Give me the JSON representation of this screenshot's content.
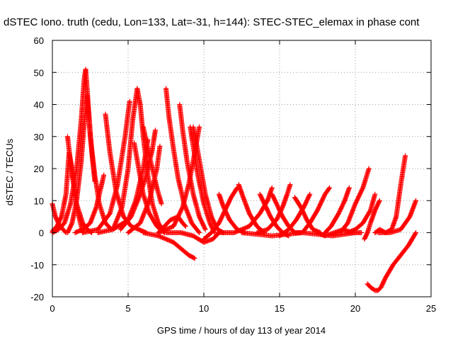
{
  "chart_data": {
    "type": "scatter",
    "title": "dSTEC Iono. truth (cedu, Lon=133, Lat=-31, h=144): STEC-STEC_elemax in phase cont",
    "xlabel": "GPS time / hours of day 113 of year 2014",
    "ylabel": "dSTEC  / TECUs",
    "xlim": [
      0,
      25
    ],
    "ylim": [
      -20,
      60
    ],
    "xticks": [
      "0",
      "5",
      "10",
      "15",
      "20",
      "25"
    ],
    "yticks": [
      "-20",
      "-10",
      "0",
      "10",
      "20",
      "30",
      "40",
      "50",
      "60"
    ],
    "grid": true,
    "marker": "plus",
    "color": "#ff0000",
    "series": [
      {
        "x": [
          0.0,
          0.3,
          0.6,
          0.9,
          1.1,
          1.3,
          1.6,
          2.0
        ],
        "y": [
          0.5,
          2,
          5,
          12,
          25,
          20,
          8,
          0
        ]
      },
      {
        "x": [
          0.0,
          0.2,
          0.4,
          0.7,
          0.9
        ],
        "y": [
          9,
          5,
          3,
          1,
          0
        ]
      },
      {
        "x": [
          0.0,
          0.4,
          0.8,
          1.2,
          1.6,
          1.9,
          2.1,
          2.2,
          2.4,
          2.6,
          2.8
        ],
        "y": [
          0,
          1,
          3,
          9,
          20,
          35,
          48,
          51,
          38,
          25,
          16
        ]
      },
      {
        "x": [
          1.0,
          1.1,
          1.3,
          1.6,
          2.0,
          2.3,
          2.6
        ],
        "y": [
          30,
          26,
          18,
          9,
          3,
          1,
          0
        ]
      },
      {
        "x": [
          1.0,
          1.3,
          1.6,
          1.9,
          2.1,
          2.3
        ],
        "y": [
          0,
          3,
          10,
          22,
          34,
          43
        ]
      },
      {
        "x": [
          2.3,
          2.5,
          2.8,
          3.1,
          3.5,
          3.9
        ],
        "y": [
          42,
          30,
          18,
          9,
          3,
          1
        ]
      },
      {
        "x": [
          1.5,
          2.0,
          2.5,
          2.9,
          3.2,
          3.4
        ],
        "y": [
          0,
          1,
          3,
          8,
          14,
          18
        ]
      },
      {
        "x": [
          2.0,
          3.0,
          3.8,
          4.3,
          4.8,
          5.1
        ],
        "y": [
          0,
          1,
          6,
          15,
          30,
          41
        ]
      },
      {
        "x": [
          3.5,
          3.8,
          4.2,
          4.7,
          5.2,
          5.7,
          6.2
        ],
        "y": [
          37,
          25,
          13,
          5,
          2,
          1,
          0
        ]
      },
      {
        "x": [
          3.0,
          4.0,
          5.0,
          5.5,
          6.0,
          6.3
        ],
        "y": [
          0,
          1,
          4,
          10,
          20,
          29
        ]
      },
      {
        "x": [
          4.0,
          4.6,
          5.0,
          5.3,
          5.6,
          5.8
        ],
        "y": [
          1,
          8,
          20,
          35,
          45,
          40
        ]
      },
      {
        "x": [
          5.8,
          6.0,
          6.3,
          6.6,
          7.0,
          7.4
        ],
        "y": [
          40,
          30,
          18,
          9,
          3,
          0
        ]
      },
      {
        "x": [
          5.4,
          5.7,
          6.0,
          6.4,
          6.9,
          7.4
        ],
        "y": [
          28,
          20,
          12,
          6,
          2,
          0
        ]
      },
      {
        "x": [
          6.0,
          6.3,
          6.6,
          6.9,
          7.2
        ],
        "y": [
          33,
          26,
          20,
          14,
          9
        ]
      },
      {
        "x": [
          4.5,
          5.2,
          5.8,
          6.2,
          6.6,
          6.8
        ],
        "y": [
          1,
          5,
          12,
          18,
          26,
          32
        ]
      },
      {
        "x": [
          5.0,
          5.8,
          6.4,
          6.9,
          7.1
        ],
        "y": [
          0,
          3,
          10,
          20,
          27
        ]
      },
      {
        "x": [
          6.0,
          7.0,
          8.0,
          8.5,
          9.0,
          9.4
        ],
        "y": [
          0,
          -1,
          -3,
          -5,
          -7,
          -8
        ]
      },
      {
        "x": [
          7.0,
          7.4,
          7.8,
          8.3,
          8.6,
          8.8
        ],
        "y": [
          0,
          2,
          4,
          5,
          3,
          2
        ]
      },
      {
        "x": [
          7.5,
          7.7,
          8.0,
          8.3,
          8.7,
          9.2,
          9.7
        ],
        "y": [
          45,
          36,
          26,
          17,
          9,
          3,
          0
        ]
      },
      {
        "x": [
          8.4,
          8.6,
          8.9,
          9.3,
          9.7,
          10.1
        ],
        "y": [
          40,
          32,
          22,
          12,
          5,
          1
        ]
      },
      {
        "x": [
          9.1,
          9.3,
          9.6,
          10.0,
          10.4,
          10.7
        ],
        "y": [
          33,
          27,
          18,
          9,
          3,
          0
        ]
      },
      {
        "x": [
          9.3,
          9.5,
          9.8,
          10.1,
          10.5,
          10.9,
          11.3
        ],
        "y": [
          33,
          28,
          20,
          12,
          5,
          1,
          0
        ]
      },
      {
        "x": [
          7.0,
          8.0,
          8.6,
          9.0,
          9.4,
          9.7
        ],
        "y": [
          0,
          2,
          8,
          15,
          25,
          33
        ]
      },
      {
        "x": [
          7.5,
          8.5,
          9.3,
          10.0,
          10.6,
          11.0
        ],
        "y": [
          0,
          0,
          -1,
          -3,
          -2,
          0
        ]
      },
      {
        "x": [
          11.0,
          11.3,
          11.7,
          12.2,
          12.7
        ],
        "y": [
          12,
          8,
          4,
          1,
          0
        ]
      },
      {
        "x": [
          10.0,
          10.5,
          11.0,
          11.5,
          11.8,
          12.2
        ],
        "y": [
          -2,
          0,
          3,
          8,
          11,
          14
        ]
      },
      {
        "x": [
          12.3,
          12.6,
          13.0,
          13.5,
          14.0
        ],
        "y": [
          15,
          11,
          6,
          2,
          0
        ]
      },
      {
        "x": [
          11.0,
          12.0,
          13.0,
          13.7,
          14.2,
          14.5
        ],
        "y": [
          0,
          0,
          2,
          6,
          10,
          14
        ]
      },
      {
        "x": [
          13.7,
          14.0,
          14.4,
          14.8,
          15.2,
          15.6
        ],
        "y": [
          12,
          9,
          5,
          2,
          0,
          -1
        ]
      },
      {
        "x": [
          13.5,
          14.2,
          14.8,
          15.2,
          15.5,
          15.7
        ],
        "y": [
          0,
          1,
          4,
          8,
          12,
          15
        ]
      },
      {
        "x": [
          14.5,
          14.8,
          15.2,
          15.6,
          16.0,
          16.4
        ],
        "y": [
          12,
          9,
          5,
          2,
          0,
          0
        ]
      },
      {
        "x": [
          15.0,
          15.6,
          16.1,
          16.6,
          17.0
        ],
        "y": [
          -1,
          1,
          4,
          8,
          12
        ]
      },
      {
        "x": [
          16.0,
          16.4,
          16.8,
          17.2,
          17.7
        ],
        "y": [
          11,
          8,
          4,
          1,
          0
        ]
      },
      {
        "x": [
          16.0,
          16.5,
          17.0,
          17.5,
          18.0,
          18.3
        ],
        "y": [
          0,
          0,
          3,
          7,
          12,
          14
        ]
      },
      {
        "x": [
          17.5,
          18.0,
          18.6,
          19.2,
          19.8,
          20.4
        ],
        "y": [
          0,
          -1,
          0,
          1,
          0,
          0
        ]
      },
      {
        "x": [
          18.0,
          18.4,
          18.9,
          19.3,
          19.6
        ],
        "y": [
          0,
          2,
          6,
          10,
          14
        ]
      },
      {
        "x": [
          19.0,
          19.5,
          20.0,
          20.5,
          20.9
        ],
        "y": [
          0,
          3,
          9,
          14,
          20
        ]
      },
      {
        "x": [
          19.5,
          20.0,
          20.5,
          21.0,
          21.3
        ],
        "y": [
          0,
          1,
          3,
          7,
          12
        ]
      },
      {
        "x": [
          20.6,
          20.8,
          21.0,
          21.3,
          21.6
        ],
        "y": [
          -2,
          0,
          3,
          7,
          10
        ]
      },
      {
        "x": [
          21.3,
          21.6,
          22.0,
          22.4,
          22.7,
          23.0,
          23.3
        ],
        "y": [
          0,
          1,
          0,
          1,
          5,
          15,
          24
        ]
      },
      {
        "x": [
          20.8,
          21.0,
          21.3,
          21.5,
          21.7,
          22.0,
          22.5,
          23.0,
          23.5,
          24.0
        ],
        "y": [
          -16,
          -17,
          -18,
          -18,
          -17,
          -14,
          -10,
          -7,
          -4,
          0
        ]
      },
      {
        "x": [
          21.5,
          22.3,
          23.0,
          23.6,
          24.0
        ],
        "y": [
          0,
          0,
          1,
          5,
          10
        ]
      },
      {
        "x": [
          12.5,
          14.5,
          16.5,
          18.5,
          20.0
        ],
        "y": [
          0,
          -1,
          0,
          -1,
          0
        ]
      }
    ]
  }
}
